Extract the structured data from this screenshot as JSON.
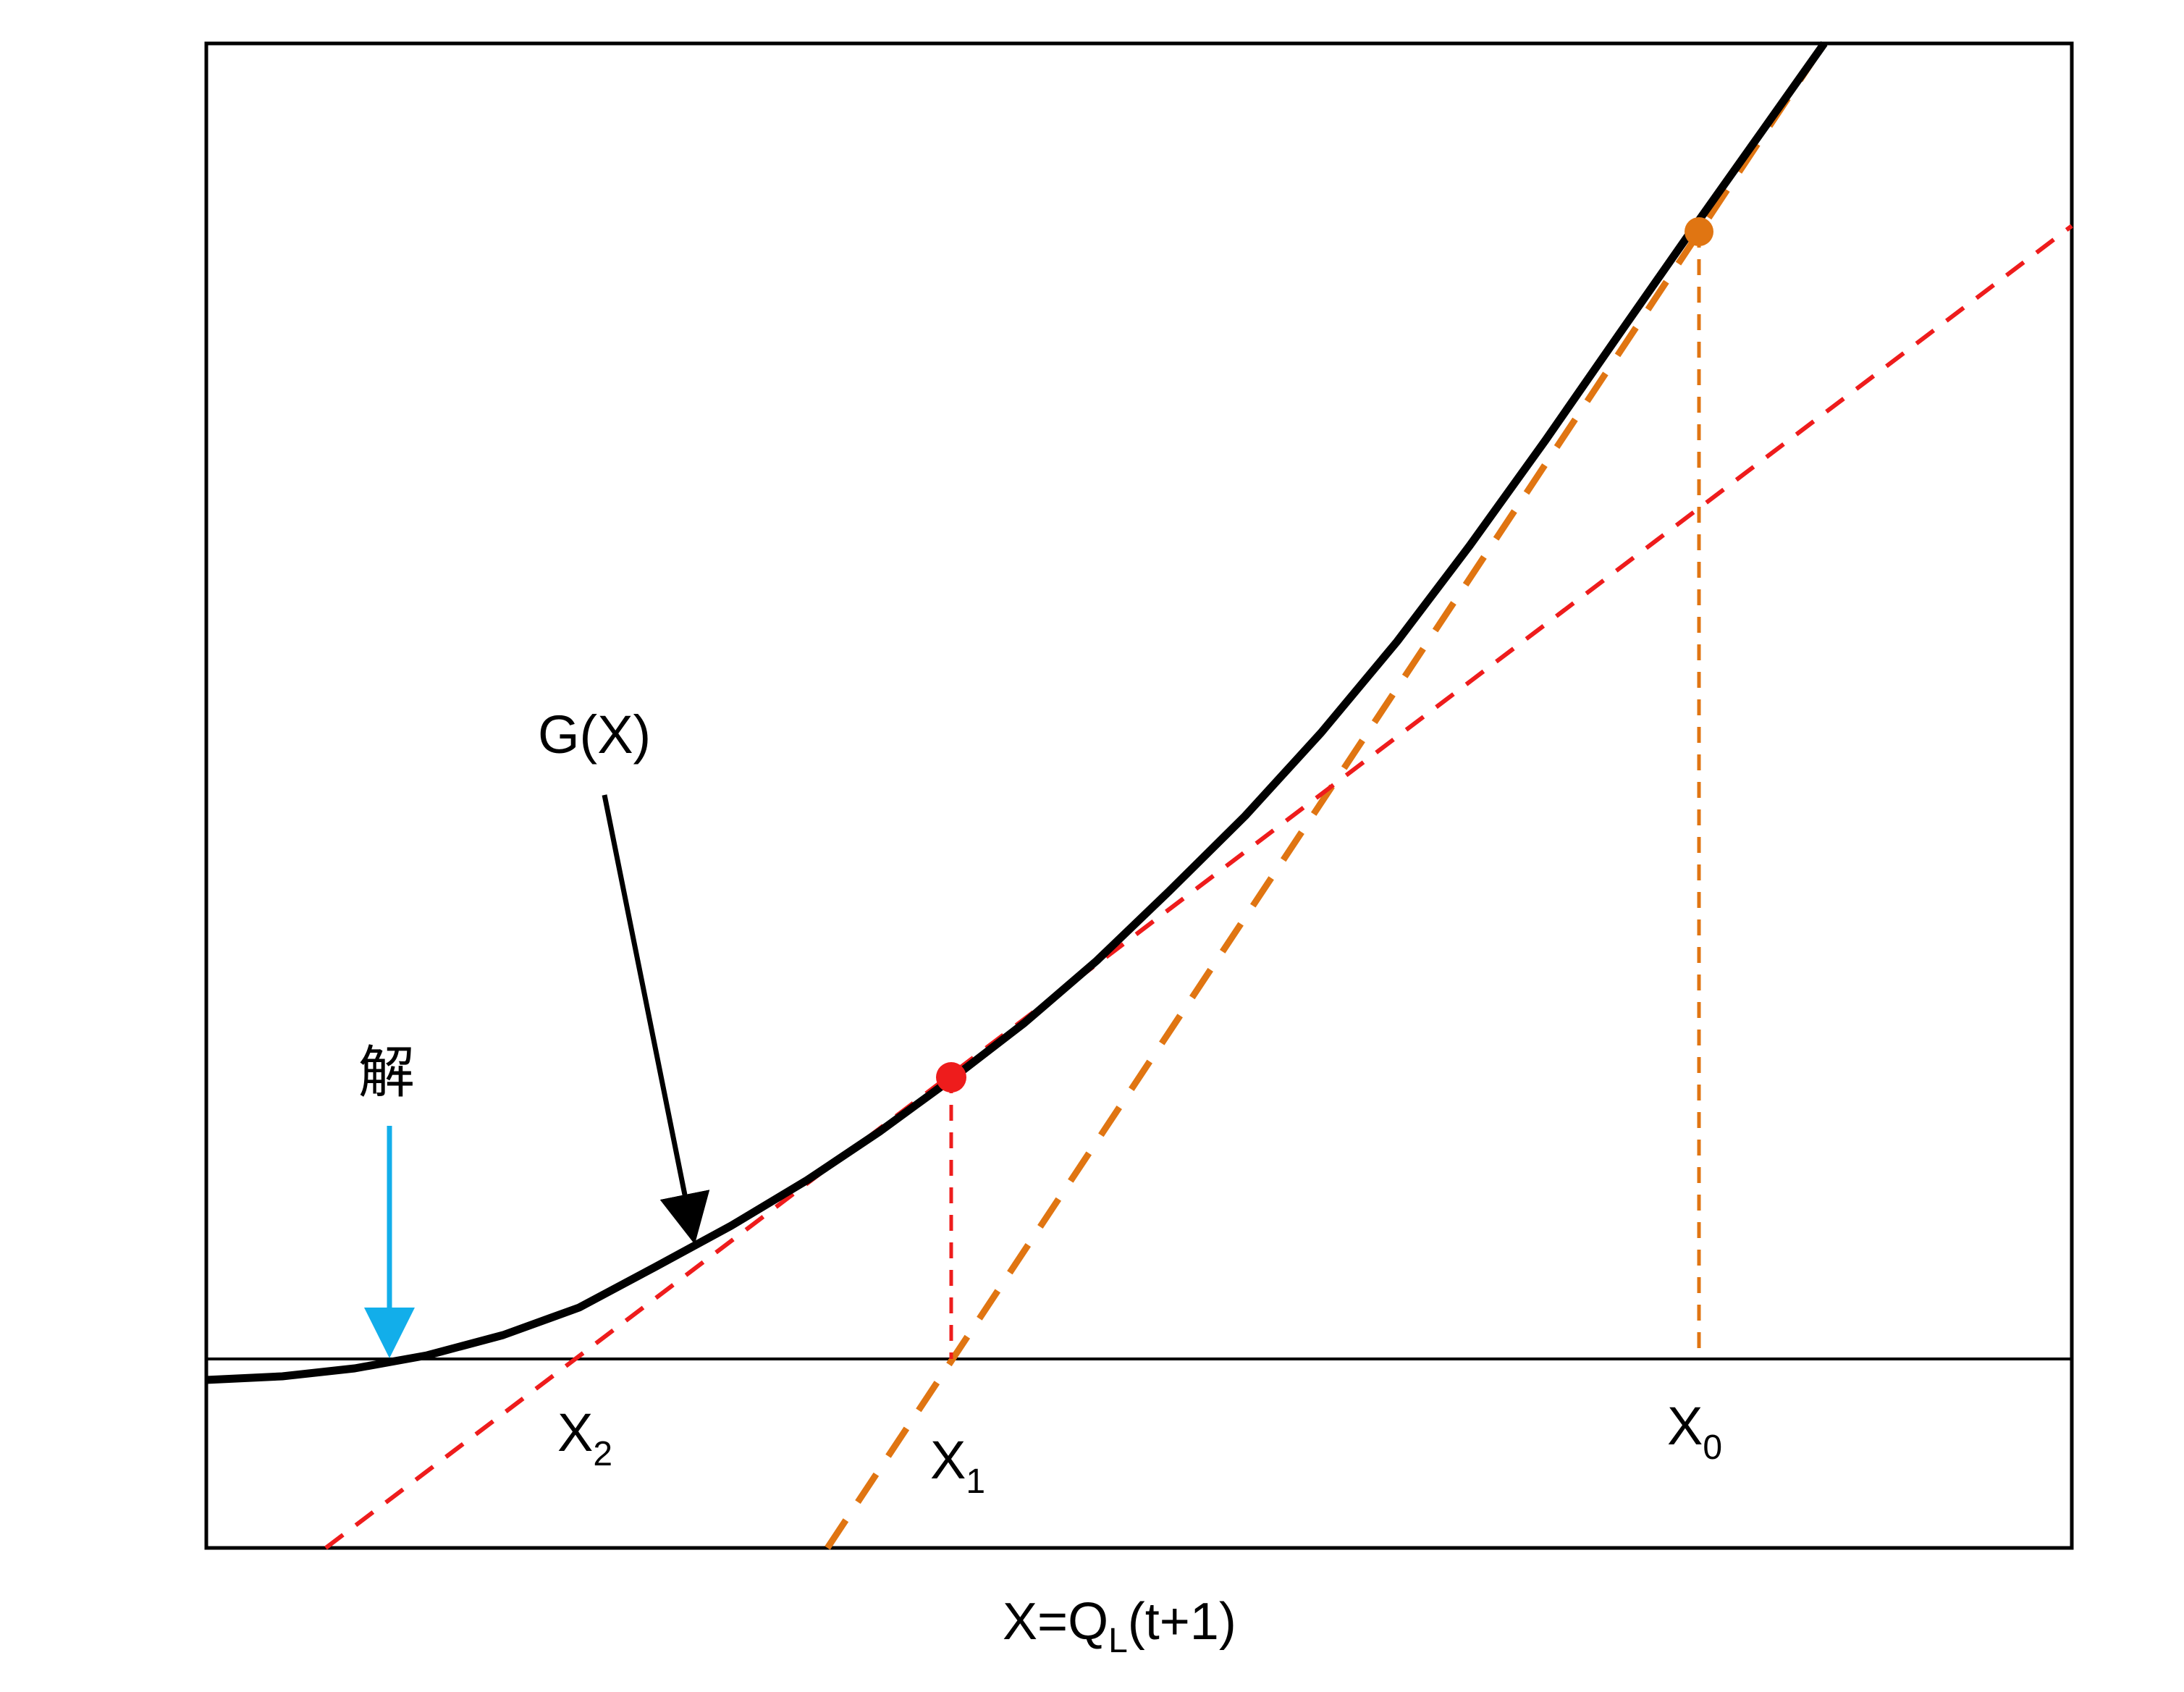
{
  "diagram": {
    "curve_label": "G(X)",
    "solution_label": "解",
    "x_axis_label": {
      "base": "X=Q",
      "subscript": "L",
      "suffix": "(t+1)"
    },
    "iterates": [
      {
        "base": "X",
        "subscript": "0"
      },
      {
        "base": "X",
        "subscript": "1"
      },
      {
        "base": "X",
        "subscript": "2"
      }
    ],
    "colors": {
      "curve": "#000000",
      "frame": "#000000",
      "first_tangent": "#e07512",
      "second_tangent": "#ee1c1c",
      "solution_arrow": "#12aeea",
      "label_arrow": "#000000"
    }
  }
}
